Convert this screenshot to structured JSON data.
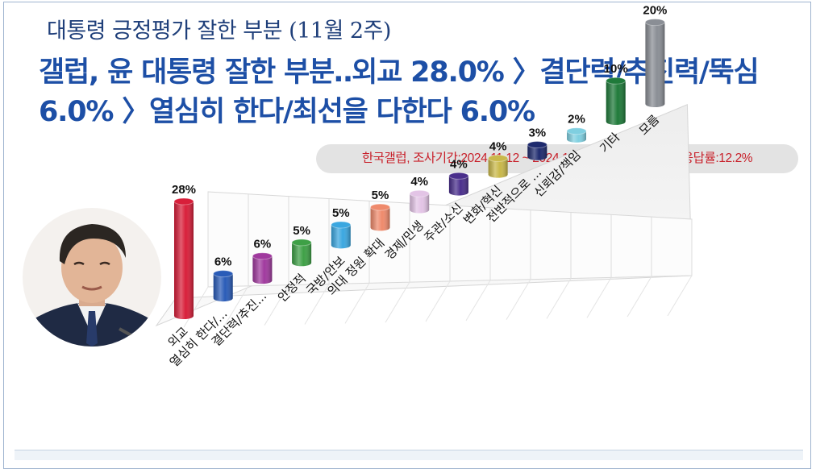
{
  "header": {
    "subtitle": "대통령 긍정평가 잘한 부분 (11월 2주)",
    "headline": "갤럽, 윤 대통령 잘한 부분‥외교 28.0% 〉결단력/추진력/뚝심 6.0% 〉열심히 한다/최선을 다한다 6.0%"
  },
  "source": {
    "text": "한국갤럽, 조사기간:2024.11.12 ~ 2024.11.14, 100% 전화면접, 응답률:12.2%"
  },
  "portrait": {
    "icon": "person-portrait-icon"
  },
  "chart_data": {
    "type": "bar",
    "style": "3d-cylinder",
    "grid": true,
    "categories": [
      "외교",
      "열심히 한다/...",
      "결단력/추진...",
      "안정적",
      "국방/안보",
      "의대 정원 확대",
      "경제/민생",
      "주관/소신",
      "변화/혁신",
      "전반적으로 ...",
      "신뢰감/책임",
      "기타",
      "모름"
    ],
    "values": [
      28,
      6,
      6,
      5,
      5,
      5,
      4,
      4,
      4,
      3,
      2,
      10,
      20
    ],
    "labels": [
      "28%",
      "6%",
      "6%",
      "5%",
      "5%",
      "5%",
      "4%",
      "4%",
      "4%",
      "3%",
      "2%",
      "10%",
      "20%"
    ],
    "colors": [
      "#d81f3a",
      "#2a5cb8",
      "#a03a9e",
      "#3ea046",
      "#3ba7e0",
      "#ef8a6c",
      "#e3c4e6",
      "#4a2f8c",
      "#c9b84a",
      "#1e2a6e",
      "#7fcfe0",
      "#1f7a3a",
      "#8a8e95"
    ],
    "ylim": [
      0,
      28
    ]
  }
}
